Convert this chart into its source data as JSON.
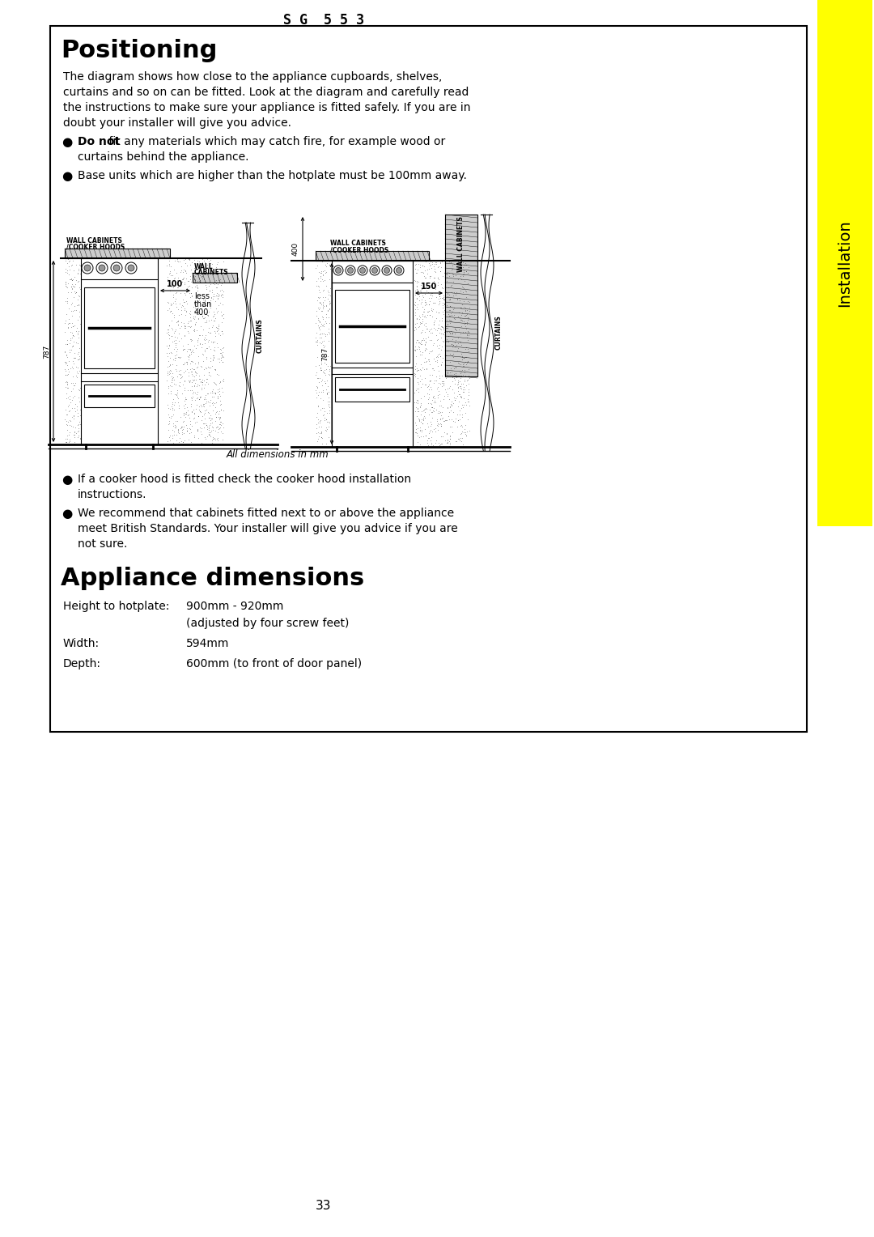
{
  "page_title": "S G  5 5 3",
  "section1_title": "Positioning",
  "para1_lines": [
    "The diagram shows how close to the appliance cupboards, shelves,",
    "curtains and so on can be fitted. Look at the diagram and carefully read",
    "the instructions to make sure your appliance is fitted safely. If you are in",
    "doubt your installer will give you advice."
  ],
  "bullet1_bold": "Do not",
  "bullet1_rest": " fit any materials which may catch fire, for example wood or",
  "bullet1_cont": "curtains behind the appliance.",
  "bullet2": "Base units which are higher than the hotplate must be 100mm away.",
  "bullet3a": "If a cooker hood is fitted check the cooker hood installation",
  "bullet3b": "instructions.",
  "bullet4a": "We recommend that cabinets fitted next to or above the appliance",
  "bullet4b": "meet British Standards. Your installer will give you advice if you are",
  "bullet4c": "not sure.",
  "section2_title": "Appliance dimensions",
  "dim1_label": "Height to hotplate:",
  "dim1_value": "900mm - 920mm",
  "dim1_sub": "(adjusted by four screw feet)",
  "dim2_label": "Width:",
  "dim2_value": "594mm",
  "dim3_label": "Depth:",
  "dim3_value": "600mm (to front of door panel)",
  "diagram_note": "All dimensions in mm",
  "page_number": "33",
  "sidebar_text": "Installation",
  "sidebar_color": "#FFFF00",
  "bg_color": "#FFFFFF",
  "text_color": "#000000",
  "border_color": "#000000"
}
